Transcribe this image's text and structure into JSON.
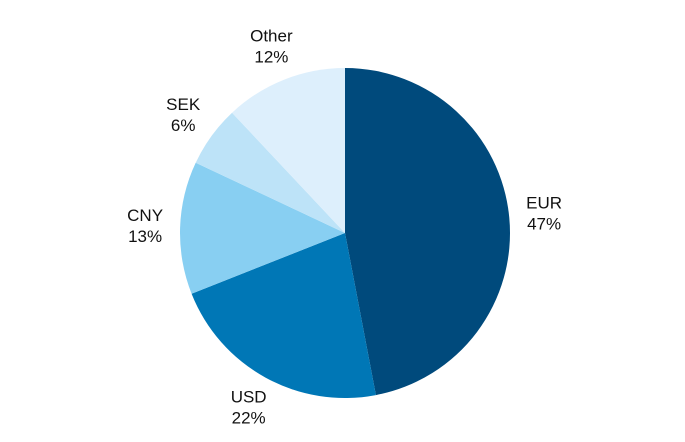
{
  "chart_data": {
    "type": "pie",
    "categories": [
      "EUR",
      "USD",
      "CNY",
      "SEK",
      "Other"
    ],
    "values": [
      47,
      22,
      13,
      6,
      12
    ],
    "value_labels": [
      "47%",
      "22%",
      "13%",
      "6%",
      "12%"
    ],
    "colors": [
      "#004a7c",
      "#0077b6",
      "#88cff2",
      "#bde3f8",
      "#ddeffc"
    ]
  }
}
